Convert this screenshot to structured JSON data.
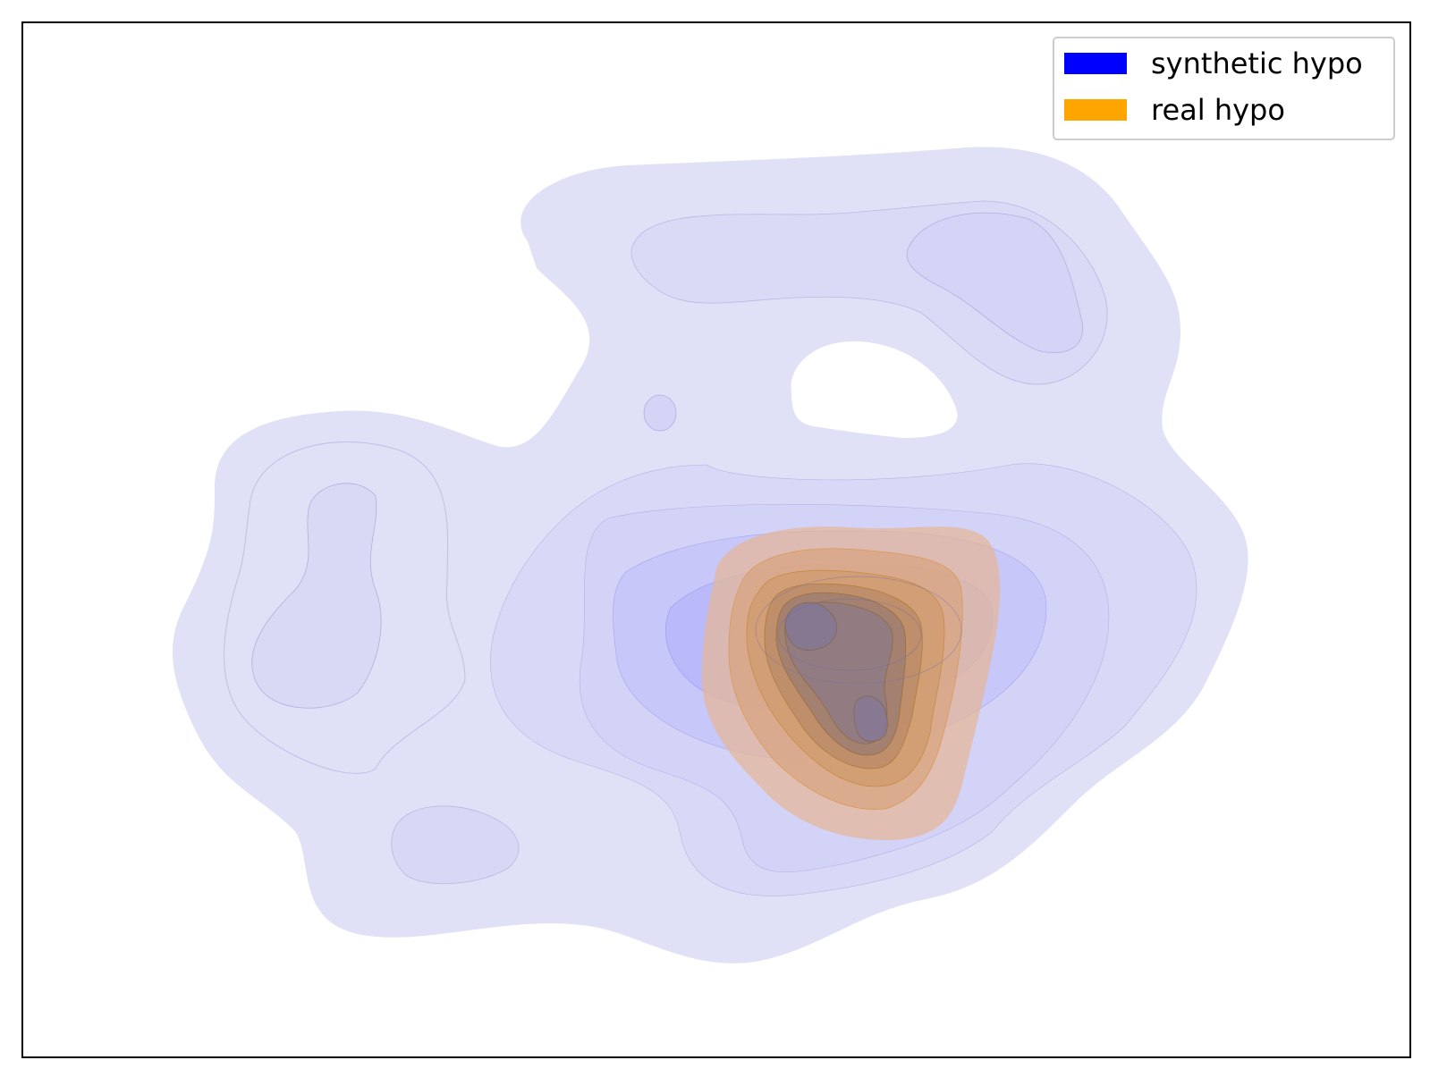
{
  "chart_data": {
    "type": "kde-contour",
    "xticks": [],
    "yticks": [],
    "grid": false,
    "legend_position": "top-right",
    "series": [
      {
        "name": "synthetic hypo",
        "color": "#0000ff",
        "levels": 9
      },
      {
        "name": "real hypo",
        "color": "#ffa500",
        "levels": 9
      }
    ]
  }
}
